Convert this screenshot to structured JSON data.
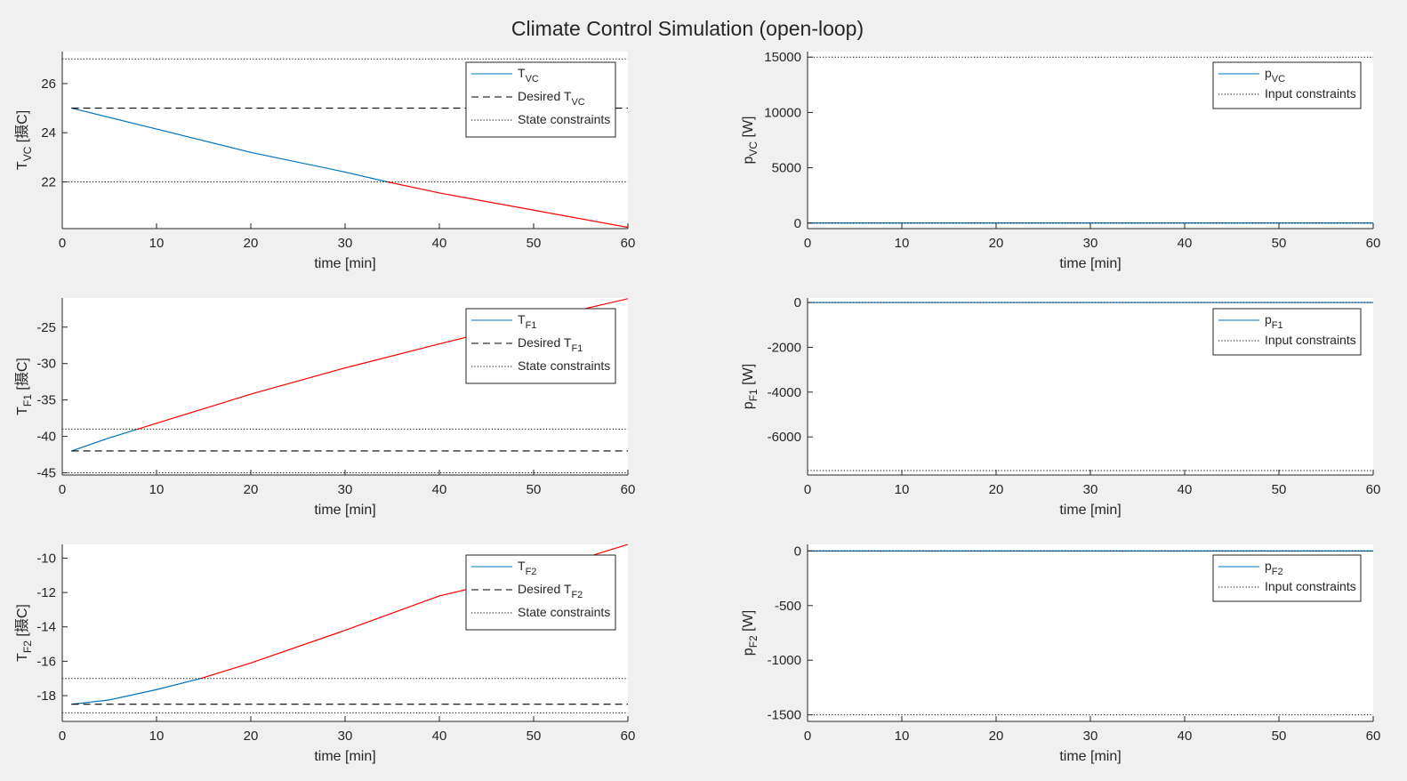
{
  "figure": {
    "title": "Climate Control Simulation (open-loop)",
    "colors": {
      "background": "#f0f0f0",
      "axes": "#ffffff",
      "state_ok": "#0072bd",
      "state_violation": "#ff0000",
      "desired": "#000000",
      "constraints": "#000000"
    }
  },
  "chart_data": [
    {
      "type": "line",
      "id": "tvc",
      "xlabel": "time [min]",
      "ylabel": {
        "main": "T",
        "sub": "VC",
        "unit": " [摄C]"
      },
      "xlim": [
        0,
        60
      ],
      "ylim": [
        20.1,
        27.3
      ],
      "xticks": [
        0,
        10,
        20,
        30,
        40,
        50,
        60
      ],
      "yticks": [
        22,
        24,
        26
      ],
      "legend": {
        "position": "top-right",
        "entries": [
          {
            "style": "solid",
            "main": "T",
            "sub": "VC"
          },
          {
            "style": "dashed",
            "main": "Desired T",
            "sub": "VC"
          },
          {
            "style": "dotted",
            "main": "State constraints",
            "sub": ""
          }
        ]
      },
      "series": [
        {
          "role": "state",
          "x": [
            1,
            10,
            20,
            30,
            34.5,
            40,
            50,
            60
          ],
          "y": [
            25.0,
            24.15,
            23.2,
            22.4,
            22.0,
            21.55,
            20.85,
            20.15
          ]
        },
        {
          "role": "desired",
          "x": [
            1,
            60
          ],
          "y": [
            25,
            25
          ]
        },
        {
          "role": "constraint",
          "x": [
            0,
            60
          ],
          "y": [
            27,
            27
          ]
        },
        {
          "role": "constraint",
          "x": [
            0,
            60
          ],
          "y": [
            22,
            22
          ]
        }
      ]
    },
    {
      "type": "line",
      "id": "pvc",
      "xlabel": "time [min]",
      "ylabel": {
        "main": "p",
        "sub": "VC",
        "unit": " [W]"
      },
      "xlim": [
        0,
        60
      ],
      "ylim": [
        -500,
        15500
      ],
      "xticks": [
        0,
        10,
        20,
        30,
        40,
        50,
        60
      ],
      "yticks": [
        0,
        5000,
        10000,
        15000
      ],
      "legend": {
        "position": "top-right",
        "entries": [
          {
            "style": "solid",
            "main": "p",
            "sub": "VC"
          },
          {
            "style": "dotted",
            "main": "Input constraints",
            "sub": ""
          }
        ]
      },
      "series": [
        {
          "role": "input",
          "x": [
            0,
            60
          ],
          "y": [
            0,
            0
          ]
        },
        {
          "role": "constraint",
          "x": [
            0,
            60
          ],
          "y": [
            15000,
            15000
          ]
        },
        {
          "role": "constraint",
          "x": [
            0,
            60
          ],
          "y": [
            0,
            0
          ]
        }
      ]
    },
    {
      "type": "line",
      "id": "tf1",
      "xlabel": "time [min]",
      "ylabel": {
        "main": "T",
        "sub": "F1",
        "unit": " [摄C]"
      },
      "xlim": [
        0,
        60
      ],
      "ylim": [
        -45.3,
        -21
      ],
      "xticks": [
        0,
        10,
        20,
        30,
        40,
        50,
        60
      ],
      "yticks": [
        -45,
        -40,
        -35,
        -30,
        -25
      ],
      "legend": {
        "position": "top-right",
        "entries": [
          {
            "style": "solid",
            "main": "T",
            "sub": "F1"
          },
          {
            "style": "dashed",
            "main": "Desired T",
            "sub": "F1"
          },
          {
            "style": "dotted",
            "main": "State constraints",
            "sub": ""
          }
        ]
      },
      "series": [
        {
          "role": "state",
          "x": [
            1,
            5,
            8,
            10,
            20,
            30,
            40,
            50,
            60
          ],
          "y": [
            -42,
            -40.2,
            -39,
            -38.2,
            -34.2,
            -30.6,
            -27.3,
            -24.1,
            -21.1
          ]
        },
        {
          "role": "desired",
          "x": [
            1,
            60
          ],
          "y": [
            -42,
            -42
          ]
        },
        {
          "role": "constraint",
          "x": [
            0,
            60
          ],
          "y": [
            -39,
            -39
          ]
        },
        {
          "role": "constraint",
          "x": [
            0,
            60
          ],
          "y": [
            -45,
            -45
          ]
        }
      ]
    },
    {
      "type": "line",
      "id": "pf1",
      "xlabel": "time [min]",
      "ylabel": {
        "main": "p",
        "sub": "F1",
        "unit": " [W]"
      },
      "xlim": [
        0,
        60
      ],
      "ylim": [
        -7700,
        200
      ],
      "xticks": [
        0,
        10,
        20,
        30,
        40,
        50,
        60
      ],
      "yticks": [
        -6000,
        -4000,
        -2000,
        0
      ],
      "legend": {
        "position": "top-right",
        "entries": [
          {
            "style": "solid",
            "main": "p",
            "sub": "F1"
          },
          {
            "style": "dotted",
            "main": "Input constraints",
            "sub": ""
          }
        ]
      },
      "series": [
        {
          "role": "input",
          "x": [
            0,
            60
          ],
          "y": [
            0,
            0
          ]
        },
        {
          "role": "constraint",
          "x": [
            0,
            60
          ],
          "y": [
            0,
            0
          ]
        },
        {
          "role": "constraint",
          "x": [
            0,
            60
          ],
          "y": [
            -7500,
            -7500
          ]
        }
      ]
    },
    {
      "type": "line",
      "id": "tf2",
      "xlabel": "time [min]",
      "ylabel": {
        "main": "T",
        "sub": "F2",
        "unit": " [摄C]"
      },
      "xlim": [
        0,
        60
      ],
      "ylim": [
        -19.5,
        -9.2
      ],
      "xticks": [
        0,
        10,
        20,
        30,
        40,
        50,
        60
      ],
      "yticks": [
        -18,
        -16,
        -14,
        -12,
        -10
      ],
      "legend": {
        "position": "top-right",
        "entries": [
          {
            "style": "solid",
            "main": "T",
            "sub": "F2"
          },
          {
            "style": "dashed",
            "main": "Desired T",
            "sub": "F2"
          },
          {
            "style": "dotted",
            "main": "State constraints",
            "sub": ""
          }
        ]
      },
      "series": [
        {
          "role": "state",
          "x": [
            1,
            5,
            10,
            14.7,
            20,
            30,
            40,
            50,
            60
          ],
          "y": [
            -18.5,
            -18.25,
            -17.65,
            -17,
            -16.1,
            -14.2,
            -12.2,
            -10.9,
            -9.2
          ]
        },
        {
          "role": "desired",
          "x": [
            1,
            60
          ],
          "y": [
            -18.5,
            -18.5
          ]
        },
        {
          "role": "constraint",
          "x": [
            0,
            60
          ],
          "y": [
            -17,
            -17
          ]
        },
        {
          "role": "constraint",
          "x": [
            0,
            60
          ],
          "y": [
            -19,
            -19
          ]
        }
      ]
    },
    {
      "type": "line",
      "id": "pf2",
      "xlabel": "time [min]",
      "ylabel": {
        "main": "p",
        "sub": "F2",
        "unit": " [W]"
      },
      "xlim": [
        0,
        60
      ],
      "ylim": [
        -1560,
        60
      ],
      "xticks": [
        0,
        10,
        20,
        30,
        40,
        50,
        60
      ],
      "yticks": [
        -1500,
        -1000,
        -500,
        0
      ],
      "legend": {
        "position": "top-right",
        "entries": [
          {
            "style": "solid",
            "main": "p",
            "sub": "F2"
          },
          {
            "style": "dotted",
            "main": "Input constraints",
            "sub": ""
          }
        ]
      },
      "series": [
        {
          "role": "input",
          "x": [
            0,
            60
          ],
          "y": [
            0,
            0
          ]
        },
        {
          "role": "constraint",
          "x": [
            0,
            60
          ],
          "y": [
            0,
            0
          ]
        },
        {
          "role": "constraint",
          "x": [
            0,
            60
          ],
          "y": [
            -1500,
            -1500
          ]
        }
      ]
    }
  ]
}
